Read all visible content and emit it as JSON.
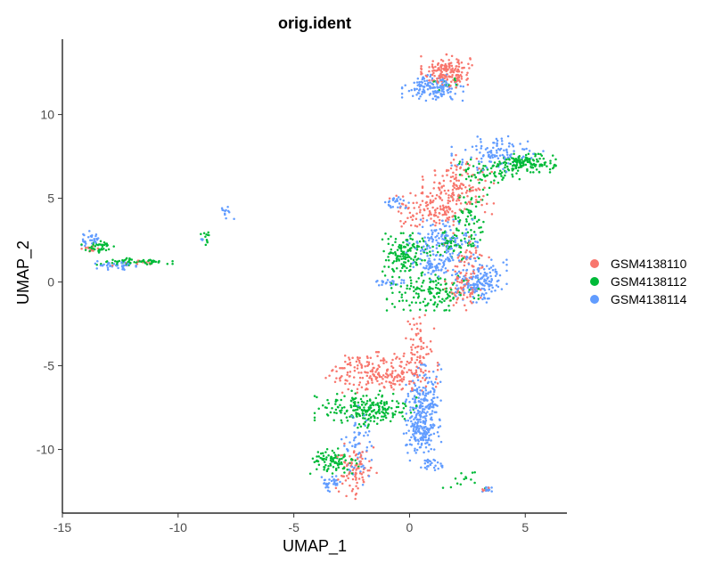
{
  "chart_data": {
    "type": "scatter",
    "title": "orig.ident",
    "xlabel": "UMAP_1",
    "ylabel": "UMAP_2",
    "xlim": [
      -15,
      6.8
    ],
    "ylim": [
      -13.8,
      14.5
    ],
    "x_ticks": [
      -15,
      -10,
      -5,
      0,
      5
    ],
    "y_ticks": [
      -10,
      -5,
      0,
      5,
      10
    ],
    "grid": false,
    "legend_position": "right",
    "series": [
      {
        "name": "GSM4138110",
        "color": "#F8766D",
        "clusters": [
          {
            "x": 1.6,
            "y": 12.6,
            "sx": 0.5,
            "sy": 0.45,
            "n": 170
          },
          {
            "x": 2.1,
            "y": 5.6,
            "sx": 0.7,
            "sy": 0.9,
            "n": 160
          },
          {
            "x": 0.9,
            "y": 4.2,
            "sx": 0.8,
            "sy": 0.5,
            "n": 110
          },
          {
            "x": 2.6,
            "y": 1.6,
            "sx": 0.5,
            "sy": 0.6,
            "n": 40
          },
          {
            "x": 2.3,
            "y": -0.4,
            "sx": 0.35,
            "sy": 0.6,
            "n": 70
          },
          {
            "x": 0.4,
            "y": -3.7,
            "sx": 0.3,
            "sy": 0.9,
            "n": 60
          },
          {
            "x": -1.2,
            "y": -5.4,
            "sx": 1.1,
            "sy": 0.55,
            "n": 230
          },
          {
            "x": -2.3,
            "y": -11.3,
            "sx": 0.4,
            "sy": 0.75,
            "n": 90
          },
          {
            "x": -13.8,
            "y": 2.0,
            "sx": 0.2,
            "sy": 0.15,
            "n": 12
          },
          {
            "x": -11.9,
            "y": 1.1,
            "sx": 0.5,
            "sy": 0.1,
            "n": 12
          },
          {
            "x": 3.2,
            "y": -12.4,
            "sx": 0.15,
            "sy": 0.1,
            "n": 6
          }
        ]
      },
      {
        "name": "GSM4138112",
        "color": "#00BA38",
        "clusters": [
          {
            "x": 5.0,
            "y": 7.1,
            "sx": 0.6,
            "sy": 0.25,
            "n": 140
          },
          {
            "x": 3.5,
            "y": 6.5,
            "sx": 0.6,
            "sy": 0.4,
            "n": 60
          },
          {
            "x": 2.6,
            "y": 4.2,
            "sx": 0.4,
            "sy": 1.3,
            "n": 80
          },
          {
            "x": -0.2,
            "y": 1.6,
            "sx": 0.5,
            "sy": 0.6,
            "n": 140
          },
          {
            "x": 1.0,
            "y": -0.6,
            "sx": 0.9,
            "sy": 0.5,
            "n": 140
          },
          {
            "x": 1.7,
            "y": 2.2,
            "sx": 0.5,
            "sy": 0.4,
            "n": 50
          },
          {
            "x": -1.9,
            "y": -7.6,
            "sx": 1.0,
            "sy": 0.5,
            "n": 220
          },
          {
            "x": -3.3,
            "y": -10.8,
            "sx": 0.5,
            "sy": 0.4,
            "n": 90
          },
          {
            "x": -13.4,
            "y": 2.1,
            "sx": 0.35,
            "sy": 0.2,
            "n": 40
          },
          {
            "x": -12.0,
            "y": 1.2,
            "sx": 0.8,
            "sy": 0.1,
            "n": 60
          },
          {
            "x": -8.8,
            "y": 2.6,
            "sx": 0.1,
            "sy": 0.2,
            "n": 12
          },
          {
            "x": 1.7,
            "y": 11.9,
            "sx": 0.3,
            "sy": 0.2,
            "n": 10
          },
          {
            "x": 2.5,
            "y": -11.9,
            "sx": 0.5,
            "sy": 0.3,
            "n": 14
          }
        ]
      },
      {
        "name": "GSM4138114",
        "color": "#619CFF",
        "clusters": [
          {
            "x": 1.0,
            "y": 11.6,
            "sx": 0.6,
            "sy": 0.35,
            "n": 150
          },
          {
            "x": 3.8,
            "y": 7.6,
            "sx": 0.9,
            "sy": 0.5,
            "n": 110
          },
          {
            "x": -0.5,
            "y": 4.7,
            "sx": 0.25,
            "sy": 0.25,
            "n": 25
          },
          {
            "x": 1.4,
            "y": 2.4,
            "sx": 0.7,
            "sy": 0.6,
            "n": 150
          },
          {
            "x": 3.1,
            "y": 0.1,
            "sx": 0.5,
            "sy": 0.6,
            "n": 170
          },
          {
            "x": 1.0,
            "y": 1.0,
            "sx": 0.4,
            "sy": 0.4,
            "n": 60
          },
          {
            "x": -0.9,
            "y": 0.0,
            "sx": 0.3,
            "sy": 0.1,
            "n": 22
          },
          {
            "x": 0.6,
            "y": -7.8,
            "sx": 0.35,
            "sy": 1.3,
            "n": 280
          },
          {
            "x": 0.3,
            "y": -9.2,
            "sx": 0.25,
            "sy": 0.4,
            "n": 40
          },
          {
            "x": -2.3,
            "y": -9.8,
            "sx": 0.3,
            "sy": 1.1,
            "n": 60
          },
          {
            "x": -3.4,
            "y": -12.0,
            "sx": 0.2,
            "sy": 0.25,
            "n": 30
          },
          {
            "x": 1.0,
            "y": -10.9,
            "sx": 0.3,
            "sy": 0.15,
            "n": 25
          },
          {
            "x": 3.3,
            "y": -12.4,
            "sx": 0.15,
            "sy": 0.08,
            "n": 14
          },
          {
            "x": -13.8,
            "y": 2.6,
            "sx": 0.2,
            "sy": 0.2,
            "n": 30
          },
          {
            "x": -12.7,
            "y": 1.0,
            "sx": 0.4,
            "sy": 0.12,
            "n": 40
          },
          {
            "x": -7.9,
            "y": 4.2,
            "sx": 0.15,
            "sy": 0.2,
            "n": 12
          },
          {
            "x": -8.9,
            "y": 2.6,
            "sx": 0.1,
            "sy": 0.1,
            "n": 4
          }
        ]
      }
    ]
  }
}
